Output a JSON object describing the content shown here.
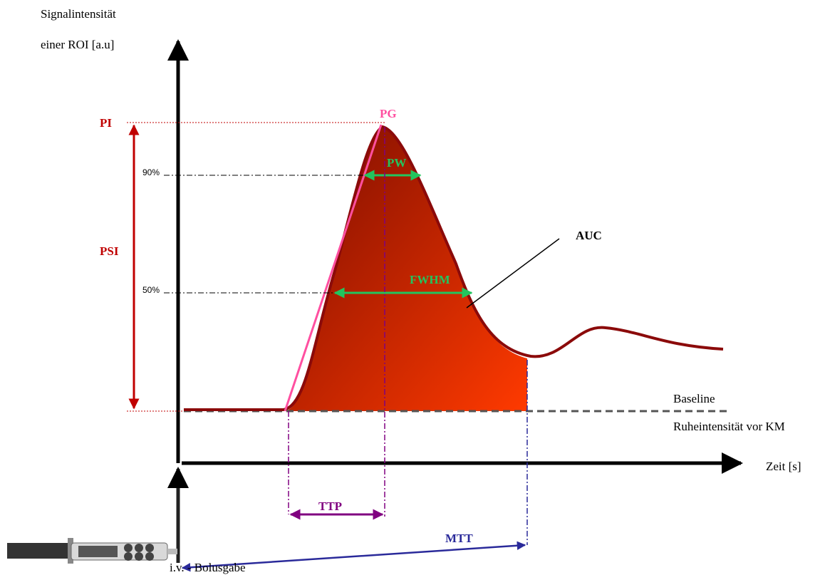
{
  "labels": {
    "y_axis_line1": "Signalintensität",
    "y_axis_line2": "einer ROI  [a.u]",
    "pi": "PI",
    "psi": "PSI",
    "p90": "90%",
    "p50": "50%",
    "pg": "PG",
    "pw": "PW",
    "auc": "AUC",
    "fwhm": "FWHM",
    "baseline": "Baseline",
    "rest": "Ruheintensität vor KM",
    "x_axis": "Zeit  [s]",
    "ttp": "TTP",
    "mtt": "MTT",
    "bolus": "i.v. - Bolusgabe"
  }
}
